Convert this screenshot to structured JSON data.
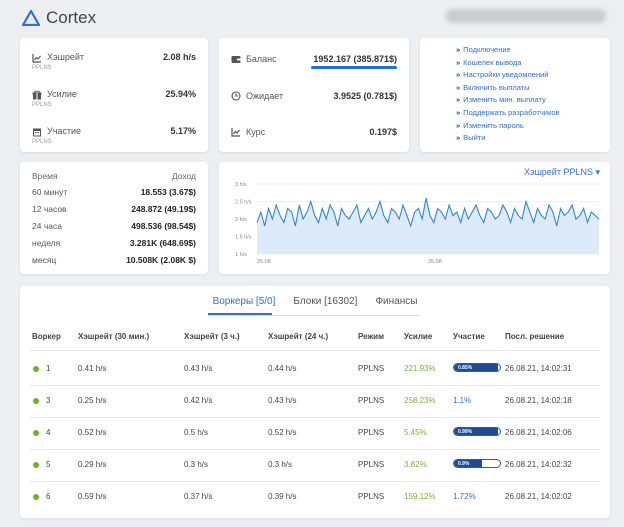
{
  "app": {
    "title": "Cortex"
  },
  "hashrate_card": [
    {
      "label": "Хэшрейт",
      "sub": "PPLNS",
      "value": "2.08 h/s",
      "icon": "chart-icon"
    },
    {
      "label": "Усилие",
      "sub": "PPLNS",
      "value": "25.94%",
      "icon": "gift-icon"
    },
    {
      "label": "Участие",
      "sub": "PPLNS",
      "value": "5.17%",
      "icon": "calendar-icon"
    }
  ],
  "balance_card": [
    {
      "label": "Баланс",
      "value": "1952.167 (385.871$)",
      "icon": "wallet-icon"
    },
    {
      "label": "Ожидает",
      "value": "3.9525 (0.781$)",
      "icon": "clock-icon"
    },
    {
      "label": "Курс",
      "value": "0.197$",
      "icon": "chart-icon"
    }
  ],
  "links": [
    "Подключение",
    "Кошелек вывода",
    "Настройки уведомлений",
    "Включить выплаты",
    "Изменить мин. выплату",
    "Поддержать разработчиков",
    "Изменить пароль",
    "Выйти"
  ],
  "income": {
    "header": {
      "k": "Время",
      "v": "Доход"
    },
    "rows": [
      {
        "k": "60 минут",
        "v": "18.553 (3.67$)"
      },
      {
        "k": "12 часов",
        "v": "248.872 (49.19$)"
      },
      {
        "k": "24 часа",
        "v": "498.536 (98.54$)"
      },
      {
        "k": "неделя",
        "v": "3.281K (648.69$)"
      },
      {
        "k": "месяц",
        "v": "10.508K (2.08K $)"
      }
    ]
  },
  "chart_selector": "Хэшрейт PPLNS ▾",
  "chart_data": {
    "type": "area",
    "ylabels": [
      "3 h/s",
      "2.5 h/s",
      "2 h/s",
      "1.5 h/s",
      "1 h/s"
    ],
    "ylim": [
      1,
      3
    ],
    "xlabels": [
      "25.08",
      "26.08"
    ],
    "values": [
      1.9,
      2.2,
      1.8,
      2.3,
      2.0,
      2.4,
      2.1,
      1.9,
      2.3,
      2.2,
      1.8,
      2.4,
      2.0,
      2.2,
      2.5,
      2.1,
      1.9,
      2.3,
      2.0,
      2.4,
      2.2,
      1.8,
      2.3,
      2.1,
      2.0,
      2.2,
      2.4,
      1.9,
      2.1,
      2.3,
      2.0,
      2.2,
      2.5,
      2.1,
      1.9,
      2.3,
      2.2,
      2.0,
      2.4,
      2.1,
      1.8,
      2.2,
      2.3,
      2.0,
      2.6,
      2.1,
      1.9,
      2.3,
      2.2,
      2.0,
      2.4,
      2.1,
      2.2,
      1.9,
      2.3,
      2.0,
      2.2,
      2.4,
      2.1,
      1.9,
      2.3,
      2.2,
      2.0,
      2.1,
      2.4,
      2.2,
      1.9,
      2.3,
      2.1,
      2.0,
      2.5,
      2.2,
      1.9,
      2.3,
      2.1,
      2.0,
      2.4,
      2.2,
      1.8,
      2.3,
      2.1,
      2.2,
      2.4,
      2.0,
      2.1,
      2.3,
      1.9,
      2.2,
      2.1,
      2.0
    ]
  },
  "tabs": [
    "Воркеры [5/0]",
    "Блоки [16302]",
    "Финансы"
  ],
  "columns": [
    "Воркер",
    "Хэшрейт (30 мин.)",
    "Хэшрейт (3 ч.)",
    "Хэшрейт (24 ч.)",
    "Режим",
    "Усилие",
    "Участие",
    "Посл. решение"
  ],
  "workers": [
    {
      "id": "1",
      "h30": "0.41 h/s",
      "h3": "0.43 h/s",
      "h24": "0.44 h/s",
      "mode": "PPLNS",
      "effort": "221.93%",
      "share": "0.85%",
      "share_bar": 0.95,
      "last": "26.08.21, 14:02:31"
    },
    {
      "id": "3",
      "h30": "0.25 h/s",
      "h3": "0.42 h/s",
      "h24": "0.43 h/s",
      "mode": "PPLNS",
      "effort": "258.23%",
      "share": "1.1%",
      "share_bar": null,
      "last": "26.08.21, 14:02:18"
    },
    {
      "id": "4",
      "h30": "0.52 h/s",
      "h3": "0.5 h/s",
      "h24": "0.52 h/s",
      "mode": "PPLNS",
      "effort": "5.45%",
      "share": "0.99%",
      "share_bar": 0.95,
      "last": "26.08.21, 14:02:06"
    },
    {
      "id": "5",
      "h30": "0.29 h/s",
      "h3": "0.3 h/s",
      "h24": "0.3 h/s",
      "mode": "PPLNS",
      "effort": "3.82%",
      "share": "0.9%",
      "share_bar": 0.6,
      "last": "26.08.21, 14:02:32"
    },
    {
      "id": "6",
      "h30": "0.59 h/s",
      "h3": "0.37 h/s",
      "h24": "0.39 h/s",
      "mode": "PPLNS",
      "effort": "159.12%",
      "share": "1.72%",
      "share_bar": null,
      "last": "26.08.21, 14:02:02"
    }
  ]
}
